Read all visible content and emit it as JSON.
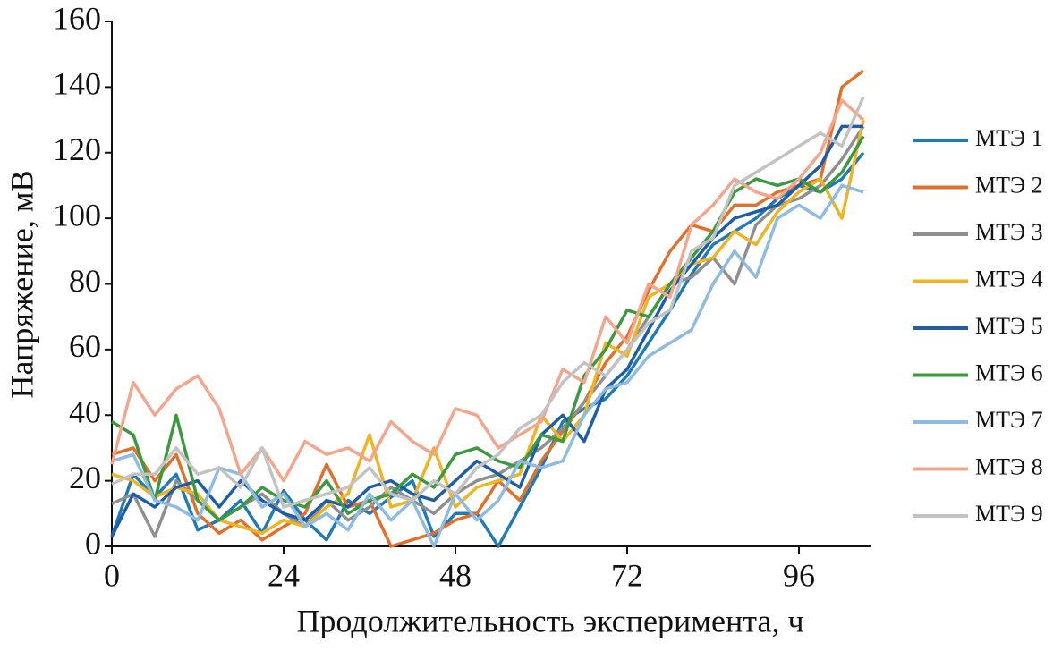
{
  "chart_data": {
    "type": "line",
    "xlabel": "Продолжительность эксперимента, ч",
    "ylabel": "Напряжение, мВ",
    "x": [
      0,
      3,
      6,
      9,
      12,
      15,
      18,
      21,
      24,
      27,
      30,
      33,
      36,
      39,
      42,
      45,
      48,
      51,
      54,
      57,
      60,
      63,
      66,
      69,
      72,
      75,
      78,
      81,
      84,
      87,
      90,
      93,
      96,
      99,
      102,
      105
    ],
    "xlim": [
      0,
      106
    ],
    "xticks": [
      0,
      24,
      48,
      72,
      96
    ],
    "ylim": [
      0,
      160
    ],
    "yticks": [
      0,
      20,
      40,
      60,
      80,
      100,
      120,
      140,
      160
    ],
    "grid": false,
    "legend": "right",
    "series": [
      {
        "name": "МТЭ 1",
        "color": "#1f7bb6",
        "values": [
          3,
          22,
          15,
          22,
          5,
          8,
          14,
          4,
          17,
          8,
          2,
          14,
          10,
          15,
          20,
          3,
          10,
          10,
          0,
          12,
          24,
          38,
          42,
          45,
          52,
          62,
          72,
          83,
          92,
          96,
          100,
          106,
          110,
          108,
          112,
          120
        ]
      },
      {
        "name": "МТЭ 2",
        "color": "#e2702a",
        "values": [
          28,
          30,
          20,
          28,
          10,
          4,
          8,
          2,
          6,
          10,
          25,
          12,
          14,
          0,
          2,
          4,
          8,
          10,
          20,
          14,
          26,
          35,
          44,
          56,
          64,
          78,
          90,
          98,
          96,
          104,
          104,
          108,
          110,
          112,
          140,
          145
        ]
      },
      {
        "name": "МТЭ 3",
        "color": "#8f8f8f",
        "values": [
          13,
          16,
          3,
          20,
          14,
          8,
          12,
          16,
          10,
          6,
          14,
          8,
          12,
          18,
          14,
          10,
          16,
          20,
          22,
          26,
          30,
          36,
          44,
          52,
          60,
          70,
          80,
          82,
          88,
          80,
          98,
          104,
          106,
          110,
          118,
          128
        ]
      },
      {
        "name": "МТЭ 4",
        "color": "#f0b420",
        "values": [
          22,
          20,
          15,
          18,
          16,
          8,
          6,
          4,
          8,
          6,
          12,
          16,
          34,
          12,
          14,
          30,
          12,
          18,
          20,
          22,
          40,
          32,
          40,
          62,
          58,
          76,
          80,
          86,
          88,
          96,
          92,
          102,
          108,
          112,
          100,
          130
        ]
      },
      {
        "name": "МТЭ 5",
        "color": "#1e5ea8",
        "values": [
          3,
          16,
          12,
          18,
          20,
          12,
          20,
          14,
          10,
          8,
          14,
          12,
          18,
          20,
          16,
          14,
          20,
          26,
          22,
          18,
          34,
          40,
          32,
          48,
          54,
          66,
          78,
          86,
          94,
          100,
          102,
          104,
          110,
          116,
          128,
          128
        ]
      },
      {
        "name": "МТЭ 6",
        "color": "#3b9a3e",
        "values": [
          38,
          34,
          14,
          40,
          14,
          8,
          12,
          18,
          14,
          12,
          20,
          10,
          14,
          16,
          22,
          18,
          28,
          30,
          26,
          24,
          34,
          32,
          52,
          60,
          72,
          70,
          80,
          88,
          96,
          108,
          112,
          110,
          112,
          108,
          114,
          125
        ]
      },
      {
        "name": "МТЭ 7",
        "color": "#8dbbe2",
        "values": [
          26,
          28,
          14,
          12,
          8,
          24,
          22,
          12,
          16,
          6,
          10,
          5,
          16,
          8,
          14,
          0,
          16,
          8,
          14,
          26,
          24,
          26,
          40,
          48,
          50,
          58,
          62,
          66,
          80,
          90,
          82,
          100,
          104,
          100,
          110,
          108
        ]
      },
      {
        "name": "МТЭ 8",
        "color": "#f5a58c",
        "values": [
          25,
          50,
          40,
          48,
          52,
          42,
          22,
          30,
          20,
          32,
          28,
          30,
          26,
          38,
          32,
          28,
          42,
          40,
          30,
          34,
          38,
          54,
          50,
          70,
          62,
          80,
          76,
          98,
          104,
          112,
          108,
          106,
          112,
          120,
          136,
          130
        ]
      },
      {
        "name": "МТЭ 9",
        "color": "#c2c2c2",
        "values": [
          19,
          22,
          22,
          30,
          22,
          24,
          18,
          30,
          12,
          14,
          16,
          18,
          24,
          16,
          14,
          20,
          16,
          24,
          28,
          36,
          40,
          50,
          56,
          52,
          60,
          68,
          72,
          90,
          94,
          110,
          114,
          118,
          122,
          126,
          122,
          137
        ]
      }
    ]
  }
}
